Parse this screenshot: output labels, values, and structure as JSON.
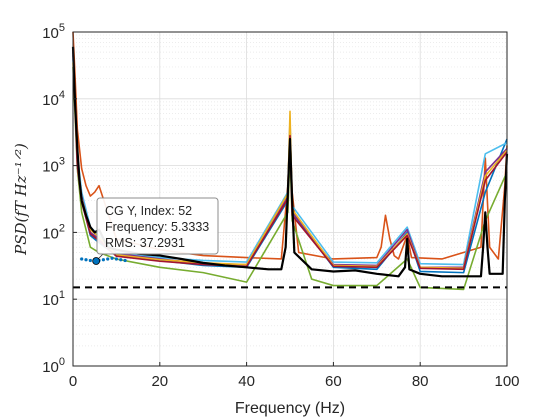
{
  "chart_data": {
    "type": "line",
    "title": "",
    "xlabel": "Frequency (Hz)",
    "ylabel": "PSD(fT Hz⁻¹ᐟ²)",
    "xlim": [
      0,
      100
    ],
    "ylim": [
      1,
      100000
    ],
    "yscale": "log",
    "grid": true,
    "legend": "none",
    "xticks": [
      "0",
      "20",
      "40",
      "60",
      "80",
      "100"
    ],
    "yticks": [
      {
        "value": 1,
        "base": "10",
        "exp": "0"
      },
      {
        "value": 10,
        "base": "10",
        "exp": "1"
      },
      {
        "value": 100,
        "base": "10",
        "exp": "2"
      },
      {
        "value": 1000,
        "base": "10",
        "exp": "3"
      },
      {
        "value": 10000,
        "base": "10",
        "exp": "4"
      },
      {
        "value": 100000,
        "base": "10",
        "exp": "5"
      }
    ],
    "reference_line": {
      "y": 15,
      "style": "dashed",
      "color": "#000000"
    },
    "series": [
      {
        "color": "#000000",
        "x": [
          0,
          0.5,
          1,
          1.5,
          2,
          3,
          4,
          5,
          6,
          8,
          10,
          15,
          20,
          25,
          30,
          35,
          40,
          45,
          48,
          49,
          49.5,
          50,
          50.5,
          51,
          55,
          60,
          65,
          70,
          75,
          76.5,
          77,
          77.5,
          80,
          85,
          90,
          94,
          94.5,
          95,
          95.5,
          96,
          99,
          99.5,
          100
        ],
        "y": [
          60000,
          8000,
          1800,
          600,
          300,
          180,
          120,
          100,
          110,
          60,
          55,
          48,
          45,
          40,
          35,
          32,
          30,
          28,
          28,
          60,
          400,
          2500,
          300,
          50,
          28,
          26,
          27,
          24,
          22,
          30,
          80,
          28,
          24,
          22,
          22,
          22,
          60,
          200,
          60,
          24,
          24,
          300,
          1500
        ]
      },
      {
        "color": "#d95319",
        "x": [
          0,
          0.5,
          1,
          2,
          3,
          4,
          5,
          6,
          8,
          10,
          20,
          30,
          40,
          48,
          49.5,
          50,
          50.5,
          52,
          60,
          70,
          71,
          72,
          73,
          74,
          75,
          77,
          78,
          85,
          94,
          95,
          96,
          98,
          99.5,
          100
        ],
        "y": [
          100000,
          20000,
          3500,
          900,
          500,
          350,
          400,
          500,
          200,
          80,
          55,
          45,
          42,
          40,
          500,
          3500,
          400,
          50,
          40,
          42,
          60,
          180,
          80,
          45,
          40,
          90,
          42,
          40,
          60,
          1300,
          60,
          40,
          500,
          2000
        ]
      },
      {
        "color": "#0072bd",
        "x": [
          0,
          1,
          2,
          4,
          6,
          10,
          20,
          30,
          40,
          49.5,
          50,
          50.5,
          60,
          70,
          77,
          80,
          90,
          95,
          100
        ],
        "y": [
          50000,
          1200,
          300,
          90,
          70,
          45,
          38,
          32,
          30,
          300,
          5000,
          200,
          30,
          28,
          100,
          26,
          25,
          400,
          2500
        ]
      },
      {
        "color": "#77ac30",
        "x": [
          0,
          1,
          2,
          4,
          6,
          10,
          20,
          30,
          40,
          49.5,
          50,
          50.5,
          55,
          60,
          70,
          77,
          80,
          90,
          95,
          100
        ],
        "y": [
          30000,
          900,
          200,
          60,
          50,
          40,
          30,
          25,
          18,
          200,
          1500,
          150,
          20,
          16,
          16,
          40,
          15,
          14,
          150,
          800
        ]
      },
      {
        "color": "#4dbeee",
        "x": [
          0,
          1,
          2,
          4,
          6,
          10,
          20,
          30,
          40,
          49.5,
          50,
          50.5,
          60,
          70,
          77,
          80,
          90,
          95,
          100
        ],
        "y": [
          40000,
          1500,
          400,
          120,
          90,
          50,
          42,
          38,
          36,
          400,
          4000,
          250,
          36,
          35,
          120,
          34,
          33,
          1500,
          2200
        ]
      },
      {
        "color": "#7e2f8e",
        "x": [
          0,
          1,
          2,
          4,
          6,
          10,
          20,
          30,
          40,
          49.5,
          50,
          50.5,
          60,
          70,
          77,
          80,
          90,
          95,
          100
        ],
        "y": [
          45000,
          1100,
          350,
          100,
          80,
          48,
          40,
          34,
          33,
          350,
          3000,
          200,
          33,
          32,
          110,
          30,
          30,
          800,
          1800
        ]
      },
      {
        "color": "#edb120",
        "x": [
          0,
          1,
          2,
          4,
          6,
          10,
          20,
          30,
          40,
          49.5,
          50,
          50.5,
          60,
          70,
          77,
          80,
          90,
          95,
          100
        ],
        "y": [
          35000,
          1300,
          320,
          110,
          85,
          46,
          39,
          35,
          33,
          380,
          6500,
          220,
          32,
          31,
          95,
          30,
          29,
          700,
          1700
        ]
      },
      {
        "color": "#a2142f",
        "x": [
          0,
          1,
          2,
          4,
          6,
          10,
          20,
          30,
          40,
          49.5,
          50,
          50.5,
          60,
          70,
          77,
          80,
          90,
          95,
          100
        ],
        "y": [
          55000,
          1000,
          280,
          95,
          75,
          44,
          37,
          33,
          31,
          320,
          2800,
          180,
          31,
          30,
          90,
          29,
          28,
          600,
          1600
        ]
      }
    ],
    "scatter_series": [
      {
        "color": "#0072bd",
        "x": [
          2,
          3,
          4,
          5,
          6,
          7,
          8,
          9,
          10,
          11,
          12
        ],
        "y": [
          40,
          39,
          38,
          37.3,
          38,
          39,
          40,
          41,
          40,
          39,
          38
        ]
      }
    ],
    "datatip": {
      "target": {
        "x": 5.3333,
        "y": 37.2931
      },
      "lines": [
        "CG Y, Index: 52",
        "Frequency: 5.3333",
        "RMS: 37.2931"
      ]
    }
  }
}
